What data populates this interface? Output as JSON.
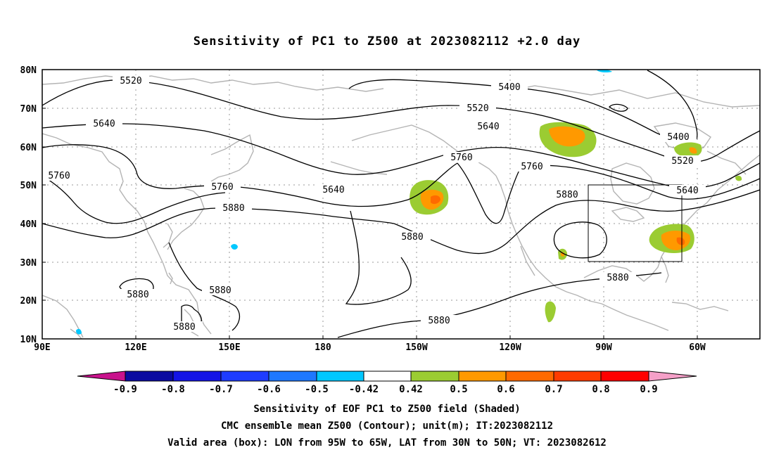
{
  "title": "Sensitivity of PC1 to Z500 at 2023082112 +2.0 day",
  "map": {
    "lat_axis": [
      "80N",
      "70N",
      "60N",
      "50N",
      "40N",
      "30N",
      "20N",
      "10N"
    ],
    "lon_axis": [
      "90E",
      "120E",
      "150E",
      "180",
      "150W",
      "120W",
      "90W",
      "60W"
    ],
    "contour_labels": [
      {
        "id": "l1",
        "text": "5520"
      },
      {
        "id": "l2",
        "text": "5640"
      },
      {
        "id": "l3",
        "text": "5760"
      },
      {
        "id": "l4",
        "text": "5400"
      },
      {
        "id": "l5",
        "text": "5520"
      },
      {
        "id": "l6",
        "text": "5640"
      },
      {
        "id": "l7",
        "text": "5640"
      },
      {
        "id": "l8",
        "text": "5760"
      },
      {
        "id": "l9",
        "text": "5880"
      },
      {
        "id": "l10",
        "text": "5760"
      },
      {
        "id": "l11",
        "text": "5760"
      },
      {
        "id": "l12",
        "text": "5880"
      },
      {
        "id": "l13",
        "text": "5880"
      },
      {
        "id": "l14",
        "text": "5880"
      },
      {
        "id": "l15",
        "text": "5880"
      },
      {
        "id": "l16",
        "text": "5880"
      },
      {
        "id": "l17",
        "text": "5880"
      },
      {
        "id": "l18",
        "text": "5880"
      },
      {
        "id": "l19",
        "text": "5400"
      },
      {
        "id": "l20",
        "text": "5520"
      },
      {
        "id": "l21",
        "text": "5640"
      }
    ],
    "valid_box": {
      "lon": [
        "95W",
        "65W"
      ],
      "lat": [
        "30N",
        "50N"
      ]
    }
  },
  "colorbar": {
    "ticks": [
      "-0.9",
      "-0.8",
      "-0.7",
      "-0.6",
      "-0.5",
      "-0.42",
      "0.42",
      "0.5",
      "0.6",
      "0.7",
      "0.8",
      "0.9"
    ],
    "colors": {
      "below": "#c8128c",
      "neg_09_08": "#0a0aa0",
      "neg_08_07": "#1414e6",
      "neg_07_06": "#1e3cff",
      "neg_06_05": "#1e78ff",
      "neg_05_042": "#00c8ff",
      "neutral": "#ffffff",
      "pos_042_05": "#9bcc32",
      "pos_05_06": "#ff9900",
      "pos_06_07": "#ff6a00",
      "pos_07_08": "#ff3c00",
      "pos_08_09": "#ff0000",
      "above": "#f5a0c8"
    }
  },
  "captions": {
    "line1": "Sensitivity of EOF PC1 to Z500 field (Shaded)",
    "line2": "CMC ensemble mean Z500 (Contour); unit(m); IT:2023082112",
    "line3": "Valid area (box): LON from 95W to 65W, LAT from 30N to 50N; VT: 2023082612"
  }
}
